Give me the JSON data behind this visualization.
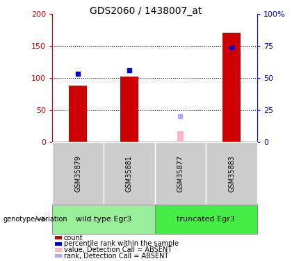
{
  "title": "GDS2060 / 1438007_at",
  "samples": [
    "GSM35879",
    "GSM35881",
    "GSM35877",
    "GSM35883"
  ],
  "count_values": [
    88,
    102,
    null,
    170
  ],
  "rank_values": [
    53,
    56,
    null,
    74
  ],
  "absent_count_values": [
    null,
    null,
    18,
    null
  ],
  "absent_rank_values": [
    null,
    null,
    20,
    null
  ],
  "ylim_left": [
    0,
    200
  ],
  "ylim_right": [
    0,
    100
  ],
  "yticks_left": [
    0,
    50,
    100,
    150,
    200
  ],
  "yticks_right": [
    0,
    25,
    50,
    75,
    100
  ],
  "bar_color": "#CC0000",
  "rank_color": "#0000CC",
  "absent_count_color": "#FFB6C1",
  "absent_rank_color": "#AAAAFF",
  "cell_bg": "#CCCCCC",
  "group1_color": "#99EE99",
  "group2_color": "#44EE44",
  "group1_label": "wild type Egr3",
  "group2_label": "truncated Egr3",
  "genotype_label": "genotype/variation",
  "legend_items": [
    {
      "label": "count",
      "color": "#CC0000"
    },
    {
      "label": "percentile rank within the sample",
      "color": "#0000CC"
    },
    {
      "label": "value, Detection Call = ABSENT",
      "color": "#FFB6C1"
    },
    {
      "label": "rank, Detection Call = ABSENT",
      "color": "#AAAAFF"
    }
  ]
}
